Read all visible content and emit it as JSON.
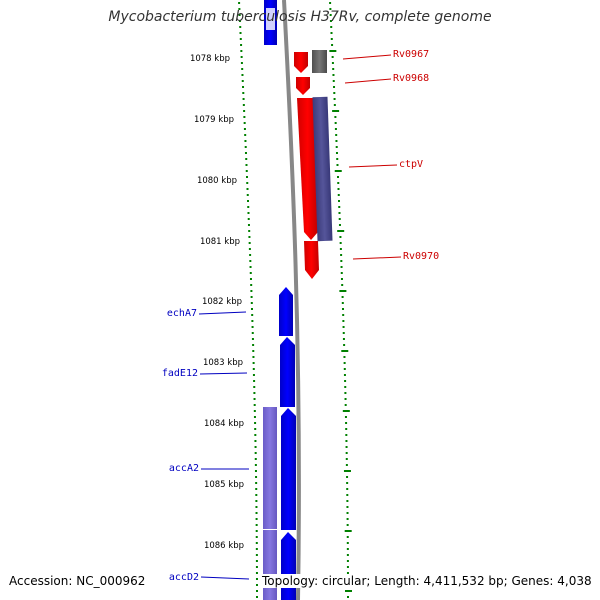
{
  "title": "Mycobacterium tuberculosis H37Rv, complete genome",
  "footer": {
    "accession": "Accession: NC_000962",
    "summary": "Topology: circular; Length: 4,411,532 bp; Genes: 4,038"
  },
  "colors": {
    "forward_gene": "#0000ff",
    "forward_gene_light": "#7a6fd6",
    "reverse_gene": "#ff0000",
    "reverse_gene_dark": "#4a4a90",
    "pseudo_gene": "#666666",
    "backbone": "#888888",
    "tick": "#008000",
    "forward_label": "#0000c0",
    "reverse_label": "#cc0000"
  },
  "kbp_ticks": [
    "1078 kbp",
    "1079 kbp",
    "1080 kbp",
    "1081 kbp",
    "1082 kbp",
    "1083 kbp",
    "1084 kbp",
    "1085 kbp",
    "1086 kbp"
  ],
  "reverse_labels": [
    "Rv0967",
    "Rv0968",
    "ctpV",
    "Rv0970"
  ],
  "forward_labels": [
    "echA7",
    "fadE12",
    "accA2",
    "accD2"
  ]
}
